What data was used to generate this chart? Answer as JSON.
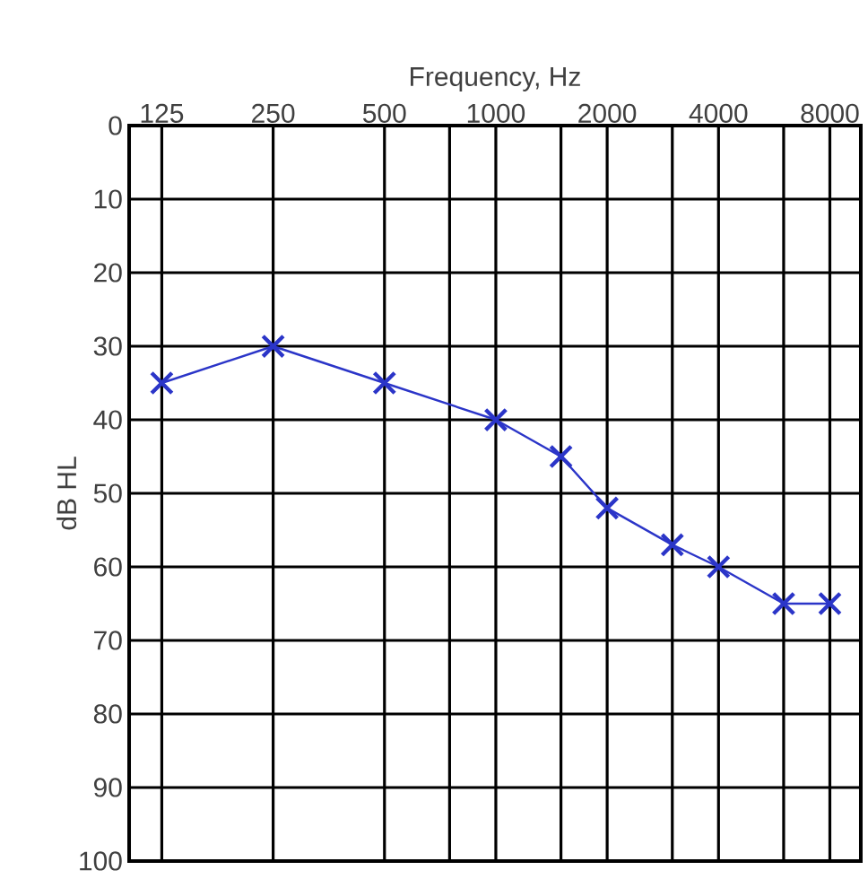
{
  "chart_data": {
    "type": "line",
    "xlabel": "Frequency, Hz",
    "ylabel": "dB HL",
    "x": [
      125,
      250,
      500,
      1000,
      1500,
      2000,
      3000,
      4000,
      6000,
      8000
    ],
    "series": [
      {
        "color": "#2b35c8",
        "values": [
          35,
          30,
          35,
          40,
          45,
          52,
          57,
          60,
          65,
          65
        ]
      }
    ],
    "log": "x",
    "xlim": [
      102,
      9700
    ],
    "ylim": [
      100,
      0
    ],
    "xticks": [
      125,
      250,
      500,
      {
        "value": 750,
        "label": null
      },
      1000,
      {
        "value": 1500,
        "label": null
      },
      2000,
      {
        "value": 3000,
        "label": null
      },
      4000,
      {
        "value": 6000,
        "label": null
      },
      8000
    ],
    "yticks": [
      0,
      10,
      20,
      30,
      40,
      50,
      60,
      70,
      80,
      90,
      100
    ],
    "grid": true,
    "marker": "cross",
    "line_style": "solid"
  }
}
